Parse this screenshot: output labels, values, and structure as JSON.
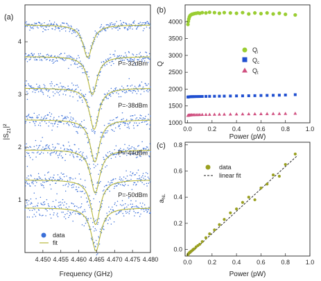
{
  "colors": {
    "data_blue": "#3a6fd8",
    "fit_green": "#b8b83a",
    "qi_green": "#9acd32",
    "qc_blue": "#1f4fd0",
    "qt_pink": "#d05080",
    "dots_olive": "#9aa020",
    "axis": "#222222"
  },
  "panel_a": {
    "label": "(a)",
    "xlabel": "Frequency (GHz)",
    "ylabel_main": "|S",
    "ylabel_sub": "21",
    "ylabel_end": "|²",
    "legend": {
      "data": "data",
      "fit": "fit"
    },
    "power_labels": [
      "P=-32dBm",
      "P=-38dBm",
      "P=-44dBm",
      "P=-50dBm"
    ]
  },
  "panel_b": {
    "label": "(b)",
    "xlabel": "Power (pW)",
    "ylabel": "Q",
    "legend": {
      "qi": "Q",
      "qi_sub": "i",
      "qc": "Q",
      "qc_sub": "c",
      "qt": "Q",
      "qt_sub": "t"
    }
  },
  "panel_c": {
    "label": "(c)",
    "xlabel": "Power (pW)",
    "ylabel": "a",
    "ylabel_sub": "NL",
    "legend": {
      "data": "data",
      "fit": "linear fit"
    }
  },
  "chart_data": [
    {
      "type": "line",
      "panel": "a",
      "xlabel": "Frequency (GHz)",
      "ylabel": "|S21|²",
      "xlim": [
        4.445,
        4.48
      ],
      "ylim": [
        0.0,
        4.7
      ],
      "x_ticks": [
        "4.450",
        "4.455",
        "4.460",
        "4.465",
        "4.470",
        "4.475",
        "4.480"
      ],
      "y_ticks": [
        1,
        2,
        3,
        4
      ],
      "series": [
        {
          "name": "data",
          "style": "scatter"
        },
        {
          "name": "fit",
          "style": "line"
        }
      ],
      "traces": [
        {
          "offset": 4.32,
          "dip_depth": 0.62,
          "f0": 4.4625,
          "width": 0.0016
        },
        {
          "offset": 3.72,
          "dip_depth": 0.72,
          "f0": 4.4638,
          "width": 0.0016
        },
        {
          "offset": 3.12,
          "dip_depth": 0.78,
          "f0": 4.4643,
          "width": 0.0016
        },
        {
          "offset": 2.52,
          "dip_depth": 0.8,
          "f0": 4.4645,
          "width": 0.0016
        },
        {
          "offset": 1.95,
          "dip_depth": 0.82,
          "f0": 4.4646,
          "width": 0.0016
        },
        {
          "offset": 1.38,
          "dip_depth": 0.85,
          "f0": 4.4647,
          "width": 0.0016
        },
        {
          "offset": 0.85,
          "dip_depth": 0.82,
          "f0": 4.4648,
          "width": 0.0016
        }
      ],
      "annotations": [
        {
          "text": "P=-32dBm",
          "y": 3.55
        },
        {
          "text": "P=-38dBm",
          "y": 2.75
        },
        {
          "text": "P=-44dBm",
          "y": 1.85
        },
        {
          "text": "P=-50dBm",
          "y": 1.05
        }
      ]
    },
    {
      "type": "scatter",
      "panel": "b",
      "xlabel": "Power (pW)",
      "ylabel": "Q",
      "xlim": [
        -0.02,
        1.0
      ],
      "ylim": [
        1000,
        4500
      ],
      "x_ticks": [
        "0.0",
        "0.2",
        "0.4",
        "0.6",
        "0.8",
        "1.0"
      ],
      "y_ticks": [
        "1000",
        "1500",
        "2000",
        "2500",
        "3000",
        "3500",
        "4000"
      ],
      "series": [
        {
          "name": "Qi",
          "marker": "circle",
          "x": [
            0.003,
            0.006,
            0.01,
            0.015,
            0.02,
            0.027,
            0.035,
            0.045,
            0.055,
            0.07,
            0.085,
            0.1,
            0.12,
            0.15,
            0.18,
            0.22,
            0.26,
            0.3,
            0.35,
            0.4,
            0.45,
            0.5,
            0.55,
            0.6,
            0.65,
            0.7,
            0.75,
            0.8,
            0.88
          ],
          "y": [
            3920,
            4010,
            4080,
            4140,
            4180,
            4200,
            4220,
            4230,
            4240,
            4250,
            4260,
            4250,
            4270,
            4260,
            4280,
            4270,
            4250,
            4270,
            4260,
            4250,
            4270,
            4230,
            4260,
            4240,
            4260,
            4230,
            4250,
            4220,
            4200
          ]
        },
        {
          "name": "Qc",
          "marker": "square",
          "x": [
            0.003,
            0.006,
            0.01,
            0.015,
            0.02,
            0.027,
            0.035,
            0.045,
            0.055,
            0.07,
            0.085,
            0.1,
            0.12,
            0.15,
            0.18,
            0.22,
            0.26,
            0.3,
            0.35,
            0.4,
            0.45,
            0.5,
            0.55,
            0.6,
            0.65,
            0.7,
            0.75,
            0.8,
            0.88
          ],
          "y": [
            1765,
            1768,
            1770,
            1772,
            1774,
            1775,
            1776,
            1777,
            1778,
            1779,
            1780,
            1781,
            1782,
            1784,
            1786,
            1788,
            1790,
            1792,
            1795,
            1798,
            1800,
            1803,
            1806,
            1810,
            1813,
            1816,
            1820,
            1825,
            1835
          ]
        },
        {
          "name": "Qt",
          "marker": "triangle",
          "x": [
            0.003,
            0.006,
            0.01,
            0.015,
            0.02,
            0.027,
            0.035,
            0.045,
            0.055,
            0.07,
            0.085,
            0.1,
            0.12,
            0.15,
            0.18,
            0.22,
            0.26,
            0.3,
            0.35,
            0.4,
            0.45,
            0.5,
            0.55,
            0.6,
            0.65,
            0.7,
            0.75,
            0.8,
            0.88
          ],
          "y": [
            1220,
            1225,
            1228,
            1230,
            1232,
            1235,
            1236,
            1238,
            1240,
            1242,
            1243,
            1244,
            1246,
            1248,
            1250,
            1252,
            1254,
            1255,
            1258,
            1260,
            1262,
            1264,
            1265,
            1268,
            1270,
            1272,
            1274,
            1276,
            1280
          ]
        }
      ]
    },
    {
      "type": "scatter",
      "panel": "c",
      "xlabel": "Power (pW)",
      "ylabel": "aNL",
      "xlim": [
        -0.02,
        1.0
      ],
      "ylim": [
        -0.05,
        0.82
      ],
      "x_ticks": [
        "0.0",
        "0.2",
        "0.4",
        "0.6",
        "0.8",
        "1.0"
      ],
      "y_ticks": [
        "0.0",
        "0.2",
        "0.4",
        "0.6",
        "0.8"
      ],
      "series": [
        {
          "name": "data",
          "x": [
            0.003,
            0.006,
            0.01,
            0.015,
            0.02,
            0.027,
            0.035,
            0.045,
            0.055,
            0.07,
            0.085,
            0.1,
            0.12,
            0.15,
            0.18,
            0.22,
            0.26,
            0.3,
            0.35,
            0.4,
            0.45,
            0.5,
            0.55,
            0.6,
            0.65,
            0.7,
            0.75,
            0.8,
            0.88
          ],
          "y": [
            -0.04,
            -0.035,
            -0.03,
            -0.025,
            -0.02,
            -0.015,
            -0.01,
            0.0,
            0.005,
            0.02,
            0.03,
            0.04,
            0.06,
            0.09,
            0.12,
            0.15,
            0.19,
            0.23,
            0.28,
            0.31,
            0.36,
            0.4,
            0.38,
            0.47,
            0.5,
            0.57,
            0.56,
            0.65,
            0.73
          ]
        },
        {
          "name": "linear fit",
          "style": "dashed",
          "x": [
            0.0,
            0.9
          ],
          "y": [
            -0.05,
            0.72
          ]
        }
      ]
    }
  ]
}
